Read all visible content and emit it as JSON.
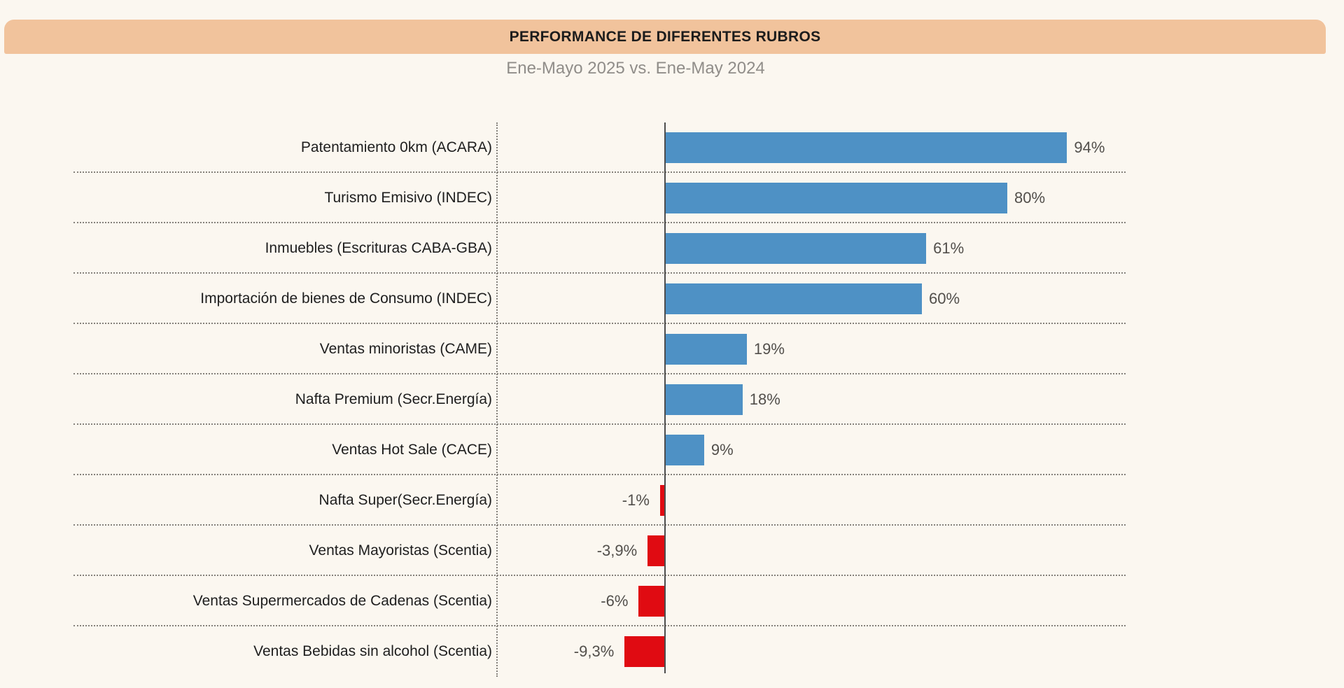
{
  "header": {
    "title": "PERFORMANCE DE DIFERENTES RUBROS"
  },
  "subtitle": "Ene-Mayo 2025 vs. Ene-May 2024",
  "chart_data": {
    "type": "bar",
    "orientation": "horizontal",
    "title": "PERFORMANCE DE DIFERENTES RUBROS",
    "subtitle": "Ene-Mayo 2025 vs. Ene-May 2024",
    "categories": [
      "Patentamiento 0km (ACARA)",
      "Turismo Emisivo (INDEC)",
      "Inmuebles (Escrituras CABA-GBA)",
      "Importación de bienes de Consumo (INDEC)",
      "Ventas minoristas (CAME)",
      "Nafta Premium (Secr.Energía)",
      "Ventas Hot Sale (CACE)",
      "Nafta Super(Secr.Energía)",
      "Ventas Mayoristas (Scentia)",
      "Ventas Supermercados de Cadenas (Scentia)",
      "Ventas Bebidas sin alcohol (Scentia)"
    ],
    "values": [
      94,
      80,
      61,
      60,
      19,
      18,
      9,
      -1,
      -3.9,
      -6,
      -9.3
    ],
    "value_labels": [
      "94%",
      "80%",
      "61%",
      "60%",
      "19%",
      "18%",
      "9%",
      "-1%",
      "-3,9%",
      "-6%",
      "-9,3%"
    ],
    "xlabel": "",
    "ylabel": "",
    "xlim": [
      -15,
      105
    ],
    "grid": "dotted horizontal row separators, dotted vertical label divider",
    "legend": "none",
    "colors": {
      "positive_bar": "#4e91c5",
      "negative_bar": "#e00b12",
      "background": "#fbf7f0",
      "title_band": "#f1c39c",
      "axis_line": "#4d4d4d",
      "grid_dotted": "#85817b",
      "category_text": "#1e1e1e",
      "value_text": "#524f4b",
      "subtitle_text": "#908d89"
    }
  }
}
